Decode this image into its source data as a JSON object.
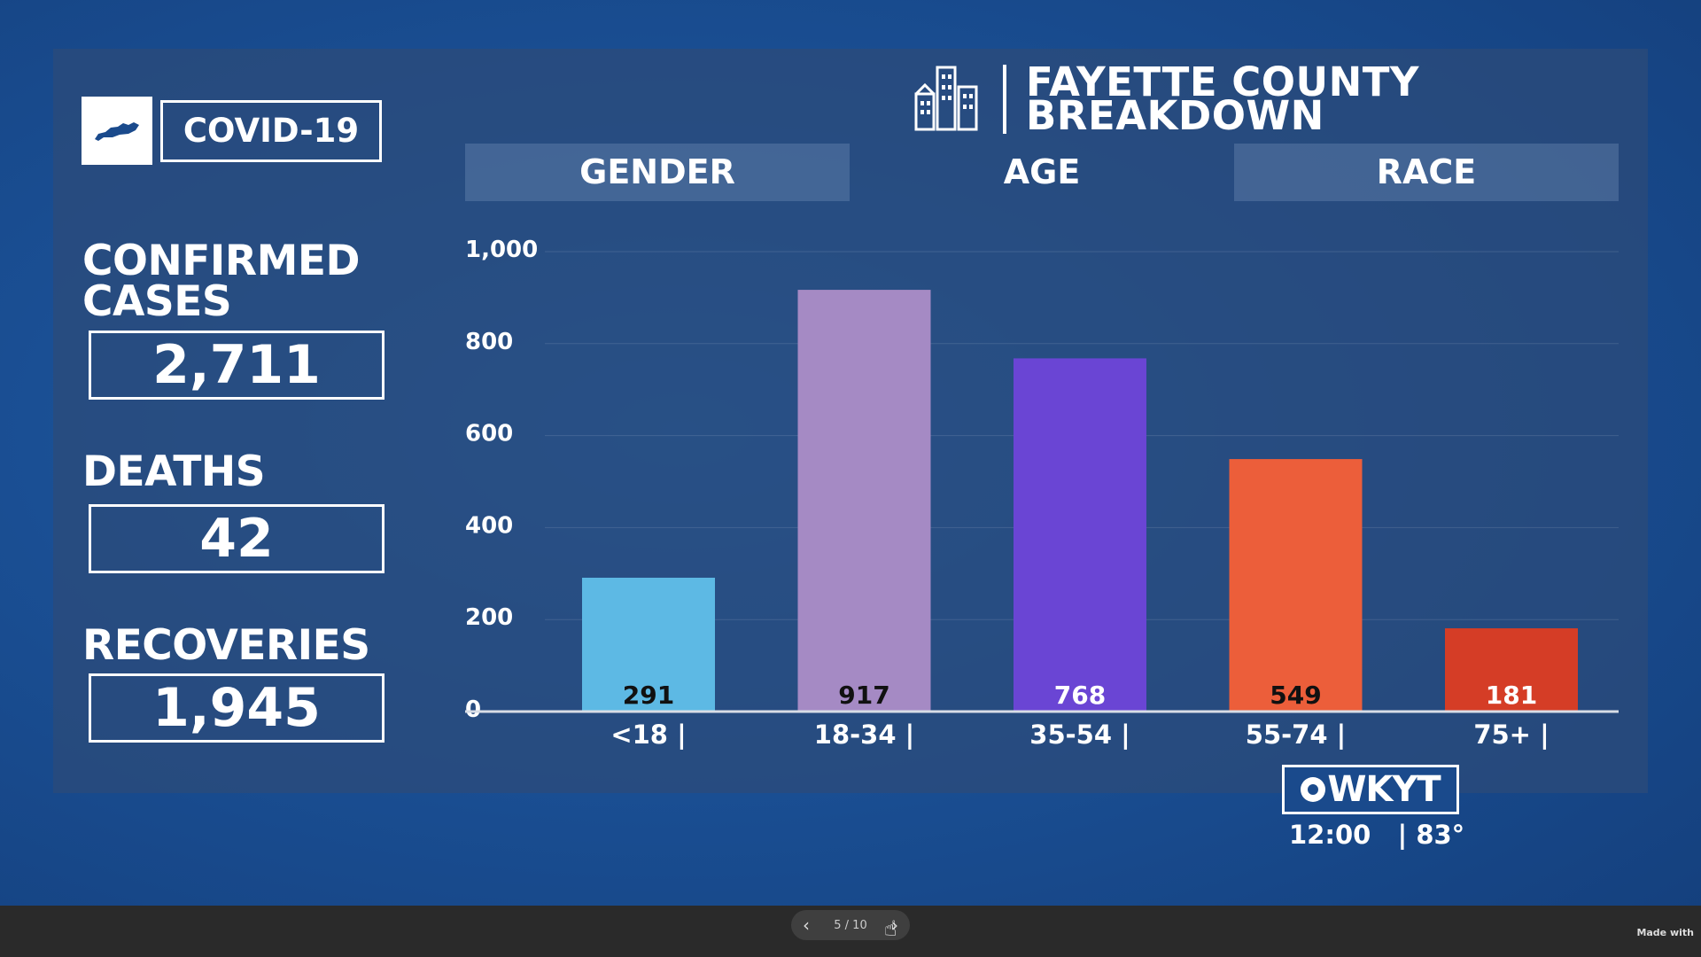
{
  "left": {
    "badge_label": "COVID-19",
    "stats": [
      {
        "title": "CONFIRMED CASES",
        "value": "2,711"
      },
      {
        "title": "DEATHS",
        "value": "42"
      },
      {
        "title": "RECOVERIES",
        "value": "1,945"
      }
    ]
  },
  "header": {
    "title_line1": "FAYETTE COUNTY",
    "title_line2": "BREAKDOWN"
  },
  "tabs": [
    "GENDER",
    "AGE",
    "RACE"
  ],
  "chart_data": {
    "type": "bar",
    "categories": [
      "<18 |",
      "18-34 |",
      "35-54 |",
      "55-74 |",
      "75+ |"
    ],
    "values": [
      291,
      917,
      768,
      549,
      181
    ],
    "value_labels": [
      "291",
      "917",
      "768",
      "549",
      "181"
    ],
    "colors": [
      "#5db9e4",
      "#a58ac4",
      "#6a45d4",
      "#ec5e3a",
      "#d53d26"
    ],
    "value_label_colors": [
      "#111111",
      "#111111",
      "#ffffff",
      "#111111",
      "#ffffff"
    ],
    "yticks": [
      0,
      200,
      400,
      600,
      800,
      1000
    ],
    "ytick_labels": [
      "0",
      "200",
      "400",
      "600",
      "800",
      "1,000"
    ],
    "ylim": [
      0,
      1000
    ],
    "grid": true
  },
  "station": {
    "logo": "WKYT",
    "time": "12:00",
    "temp": "83°"
  },
  "bottom": {
    "page_indicator": "5 / 10",
    "made_with": "Made with"
  }
}
